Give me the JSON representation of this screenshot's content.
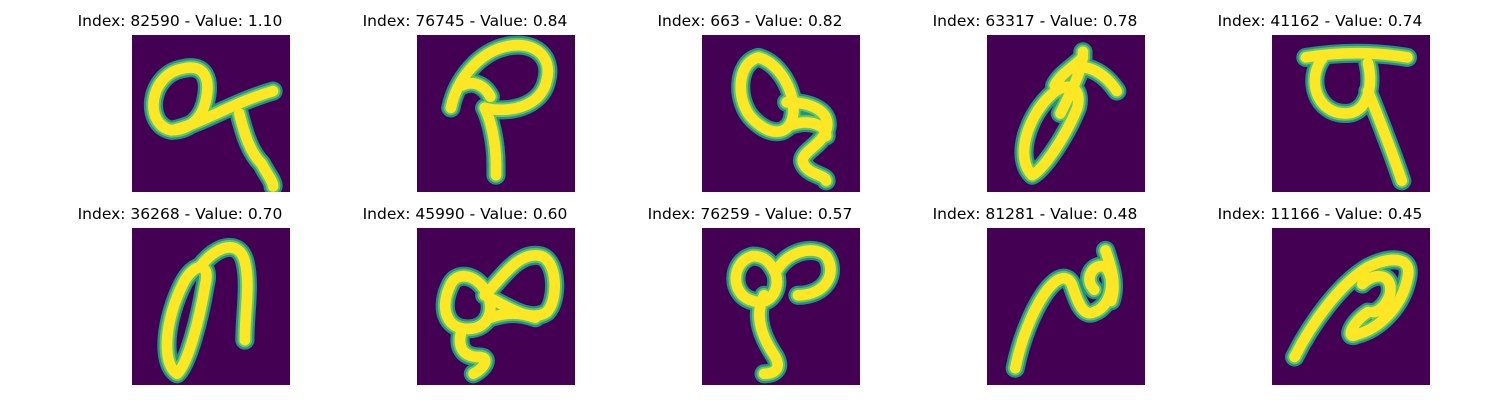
{
  "colors": {
    "background": "#440154",
    "stroke_mid": "#21918c",
    "stroke_edge": "#5ec962",
    "stroke_core": "#fde725"
  },
  "panels": [
    {
      "title": "Index: 82590 - Value: 1.10",
      "glyph": "handwritten-glyph-a"
    },
    {
      "title": "Index: 76745 - Value: 0.84",
      "glyph": "handwritten-glyph-p"
    },
    {
      "title": "Index: 663 - Value: 0.82",
      "glyph": "handwritten-glyph-loop-3"
    },
    {
      "title": "Index: 63317 - Value: 0.78",
      "glyph": "handwritten-glyph-arrow"
    },
    {
      "title": "Index: 41162 - Value: 0.74",
      "glyph": "handwritten-glyph-t"
    },
    {
      "title": "Index: 36268 - Value: 0.70",
      "glyph": "handwritten-glyph-n"
    },
    {
      "title": "Index: 45990 - Value: 0.60",
      "glyph": "handwritten-glyph-double-loop"
    },
    {
      "title": "Index: 76259 - Value: 0.57",
      "glyph": "handwritten-glyph-9"
    },
    {
      "title": "Index: 81281 - Value: 0.48",
      "glyph": "handwritten-glyph-squiggle"
    },
    {
      "title": "Index: 11166 - Value: 0.45",
      "glyph": "handwritten-glyph-swoosh"
    }
  ]
}
